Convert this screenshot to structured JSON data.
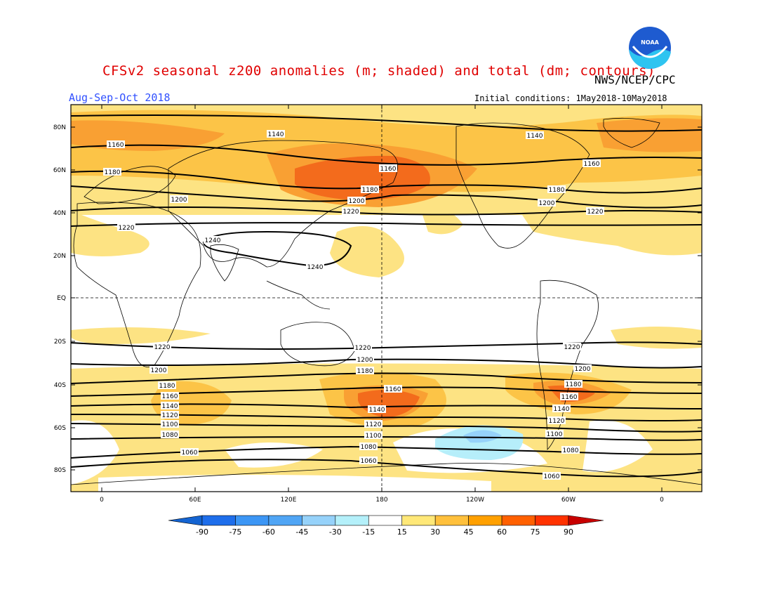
{
  "header": {
    "title": "CFSv2 seasonal z200 anomalies (m; shaded) and total (dm; contours)",
    "agency": "NWS/NCEP/CPC",
    "season": "Aug-Sep-Oct 2018",
    "initial_conditions": "Initial conditions: 1May2018-10May2018",
    "logo_text": "NOAA"
  },
  "axes": {
    "lat_labels": [
      "80N",
      "60N",
      "40N",
      "20N",
      "EQ",
      "20S",
      "40S",
      "60S",
      "80S"
    ],
    "lon_labels": [
      "0",
      "60E",
      "120E",
      "180",
      "120W",
      "60W",
      "0"
    ]
  },
  "colorbar": {
    "ticks": [
      "-90",
      "-75",
      "-60",
      "-45",
      "-30",
      "-15",
      "15",
      "30",
      "45",
      "60",
      "75",
      "90"
    ],
    "colors": [
      "#1464d2",
      "#1e6eeb",
      "#3c96f5",
      "#50a5f5",
      "#96d2fa",
      "#b4f0fa",
      "#ffffff",
      "#ffe878",
      "#ffc03c",
      "#ffa000",
      "#ff6000",
      "#ff3200",
      "#c80000"
    ]
  },
  "contours": {
    "labels": [
      "1060",
      "1080",
      "1100",
      "1120",
      "1140",
      "1160",
      "1180",
      "1200",
      "1220",
      "1240"
    ]
  },
  "colors": {
    "title": "#e00000",
    "season": "#3050ff",
    "anomaly_light": "#fde383",
    "anomaly_mid": "#fcc447",
    "anomaly_high": "#f9a033",
    "anomaly_strong": "#f36b1c",
    "anomaly_max": "#ee4a12",
    "negative_light": "#b6eefa",
    "negative_mid": "#96d2fa"
  }
}
